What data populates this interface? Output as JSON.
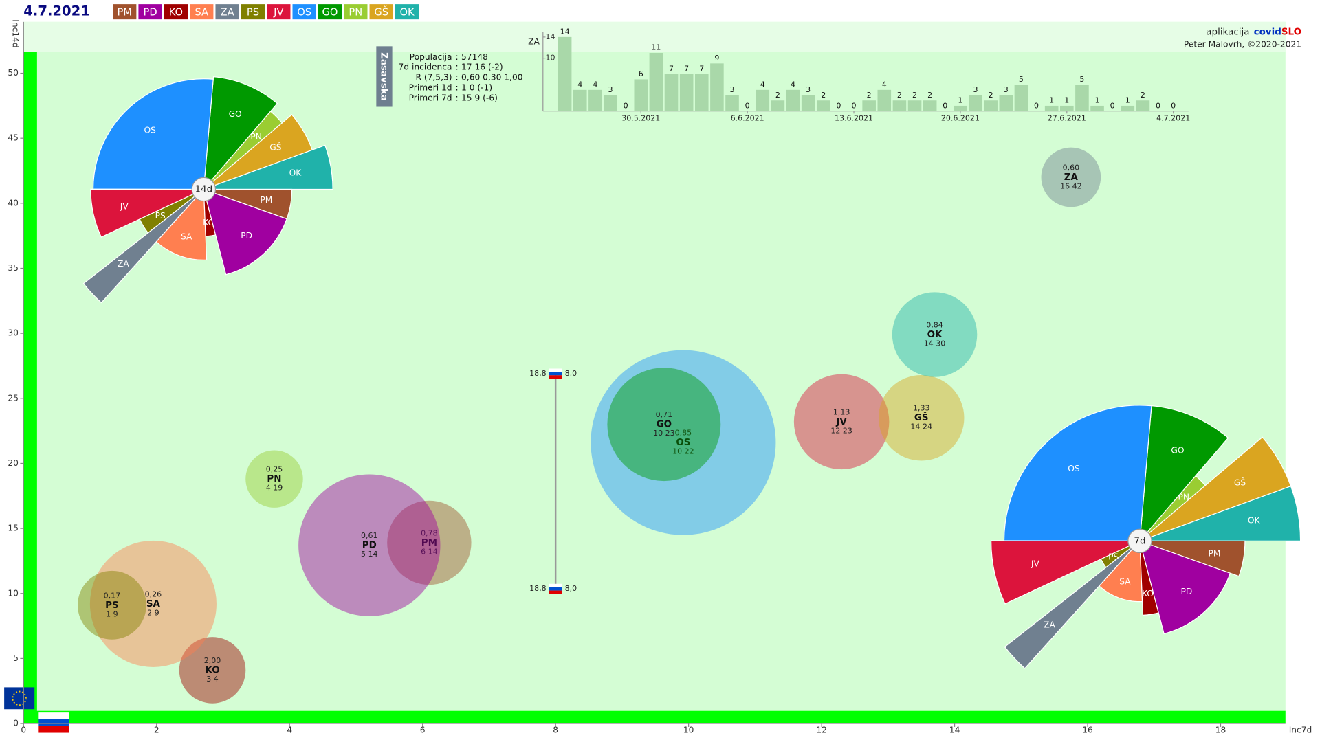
{
  "header": {
    "date": "4.7.2021"
  },
  "credits": {
    "prefix": "aplikacija",
    "brand_a": "covid",
    "brand_b": "SLO",
    "author": "Peter Malovrh, ©2020-2021"
  },
  "info": {
    "region": "Zasavska",
    "sep": ":",
    "rows": [
      [
        "Populacija",
        "57148"
      ],
      [
        "7d incidenca",
        "17 16 (-2)"
      ],
      [
        "R (7,5,3)",
        "0,60 0,30 1,00"
      ],
      [
        "Primeri 1d",
        "1 0 (-1)"
      ],
      [
        "Primeri 7d",
        "15 9 (-6)"
      ]
    ]
  },
  "chart_data": [
    {
      "type": "bubble",
      "x_label": "Inc7d",
      "y_label": "Inc14d",
      "xlim": [
        0,
        19
      ],
      "ylim": [
        0,
        54
      ],
      "xticks": [
        0,
        2,
        4,
        6,
        8,
        10,
        12,
        14,
        16,
        18
      ],
      "yticks": [
        0,
        5,
        10,
        15,
        20,
        25,
        30,
        35,
        40,
        45,
        50
      ],
      "series": [
        {
          "name": "PM",
          "color": "#a0522d",
          "x": 6.1,
          "y": 13.9,
          "size": 114000,
          "r_label": "0,78",
          "counts_label": "6 14"
        },
        {
          "name": "PD",
          "color": "#a000a0",
          "x": 5.2,
          "y": 13.7,
          "size": 324000,
          "r_label": "0,61",
          "counts_label": "5 14"
        },
        {
          "name": "KO",
          "color": "#a00000",
          "x": 2.84,
          "y": 4.1,
          "size": 71000,
          "r_label": "2,00",
          "counts_label": "3 4"
        },
        {
          "name": "SA",
          "color": "#ff7f50",
          "x": 1.95,
          "y": 9.2,
          "size": 258000,
          "r_label": "0,26",
          "counts_label": "2 9"
        },
        {
          "name": "ZA",
          "color": "#708090",
          "x": 15.75,
          "y": 42.0,
          "size": 57148,
          "r_label": "0,60",
          "counts_label": "16 42"
        },
        {
          "name": "PS",
          "color": "#808000",
          "x": 1.33,
          "y": 9.1,
          "size": 76000,
          "r_label": "0,17",
          "counts_label": "1 9"
        },
        {
          "name": "JV",
          "color": "#dc143c",
          "x": 12.3,
          "y": 23.2,
          "size": 146000,
          "r_label": "1,13",
          "counts_label": "12 23"
        },
        {
          "name": "OS",
          "color": "#1e90ff",
          "x": 9.92,
          "y": 21.6,
          "size": 551000,
          "r_label": "0,85",
          "counts_label": "10 22"
        },
        {
          "name": "GO",
          "color": "#009900",
          "x": 9.63,
          "y": 23.0,
          "size": 207000,
          "r_label": "0,71",
          "counts_label": "10 23"
        },
        {
          "name": "PN",
          "color": "#9acd32",
          "x": 3.77,
          "y": 18.8,
          "size": 53000,
          "r_label": "0,25",
          "counts_label": "4 19"
        },
        {
          "name": "GŠ",
          "color": "#daa520",
          "x": 13.5,
          "y": 23.5,
          "size": 118000,
          "r_label": "1,33",
          "counts_label": "14 24"
        },
        {
          "name": "OK",
          "color": "#20b2aa",
          "x": 13.7,
          "y": 29.9,
          "size": 116000,
          "r_label": "0,84",
          "counts_label": "14 30"
        }
      ],
      "reference": {
        "x": 8,
        "y": [
          26.9,
          10.35
        ],
        "left_label": "18,8",
        "right_label": "8,0"
      }
    },
    {
      "type": "pie",
      "title": "14d",
      "categories": [
        "OK",
        "GŠ",
        "PN",
        "GO",
        "OS",
        "JV",
        "PS",
        "ZA",
        "SA",
        "KO",
        "PD",
        "PM"
      ],
      "colors": [
        "#20b2aa",
        "#daa520",
        "#9acd32",
        "#009900",
        "#1e90ff",
        "#dc143c",
        "#808000",
        "#708090",
        "#ff7f50",
        "#a00000",
        "#a000a0",
        "#a0522d"
      ],
      "values": [
        30,
        24,
        19,
        23,
        22,
        23,
        9,
        42,
        9,
        4,
        14,
        14
      ],
      "weights": [
        116000,
        118000,
        53000,
        207000,
        551000,
        146000,
        76000,
        57148,
        258000,
        71000,
        324000,
        114000
      ]
    },
    {
      "type": "pie",
      "title": "7d",
      "categories": [
        "OK",
        "GŠ",
        "PN",
        "GO",
        "OS",
        "JV",
        "PS",
        "ZA",
        "SA",
        "KO",
        "PD",
        "PM"
      ],
      "colors": [
        "#20b2aa",
        "#daa520",
        "#9acd32",
        "#009900",
        "#1e90ff",
        "#dc143c",
        "#808000",
        "#708090",
        "#ff7f50",
        "#a00000",
        "#a000a0",
        "#a0522d"
      ],
      "values": [
        14,
        14,
        4,
        10,
        10,
        12,
        1,
        16,
        2,
        3,
        5,
        6
      ],
      "weights": [
        116000,
        118000,
        53000,
        207000,
        551000,
        146000,
        76000,
        57148,
        258000,
        71000,
        324000,
        114000
      ]
    },
    {
      "type": "bar",
      "title": "ZA",
      "color": "#a9d8a9",
      "categories": [
        null,
        null,
        null,
        null,
        null,
        "30.5.2021",
        null,
        null,
        null,
        null,
        null,
        null,
        "6.6.2021",
        null,
        null,
        null,
        null,
        null,
        null,
        "13.6.2021",
        null,
        null,
        null,
        null,
        null,
        null,
        "20.6.2021",
        null,
        null,
        null,
        null,
        null,
        null,
        "27.6.2021",
        null,
        null,
        null,
        null,
        null,
        null,
        "4.7.2021"
      ],
      "values": [
        14,
        4,
        4,
        3,
        0,
        6,
        11,
        7,
        7,
        7,
        9,
        3,
        0,
        4,
        2,
        4,
        3,
        2,
        0,
        0,
        2,
        4,
        2,
        2,
        2,
        0,
        1,
        3,
        2,
        3,
        5,
        0,
        1,
        1,
        5,
        1,
        0,
        1,
        2,
        0,
        0
      ],
      "ylim": [
        0,
        14
      ],
      "yticks": [
        10,
        14
      ]
    }
  ]
}
